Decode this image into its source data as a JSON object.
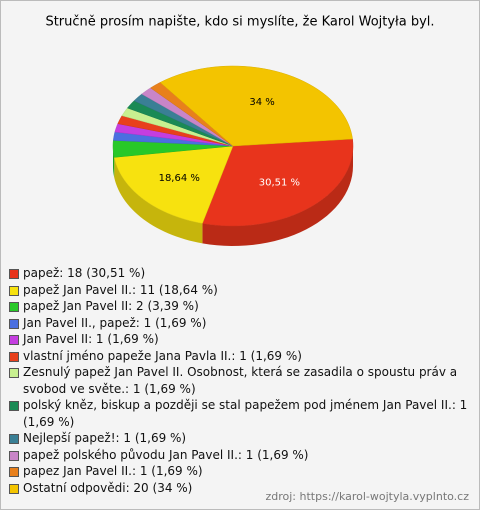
{
  "chart_data": {
    "type": "pie",
    "title": "Stručně prosím napište, kdo si myslíte, že Karol Wojtyła byl.",
    "categories": [
      "papež: 18 (30,51 %)",
      "papež Jan Pavel II.: 11 (18,64 %)",
      "papež Jan Pavel II: 2 (3,39 %)",
      "Jan Pavel II., papež: 1 (1,69 %)",
      "Jan Pavel II: 1 (1,69 %)",
      "vlastní jméno papeže Jana Pavla II.: 1 (1,69 %)",
      "Zesnulý papež Jan Pavel II. Osobnost, která se zasadila o spoustu práv a svobod ve světe.: 1 (1,69 %)",
      "polský kněz, biskup a později se stal papežem pod jménem Jan Pavel II.: 1 (1,69 %)",
      "Nejlepší papež!: 1 (1,69 %)",
      "papež polského původu Jan Pavel II.: 1 (1,69 %)",
      "papez Jan Pavel II.: 1 (1,69 %)",
      "Ostatní odpovědi: 20 (34 %)"
    ],
    "values": [
      30.51,
      18.64,
      3.39,
      1.69,
      1.69,
      1.69,
      1.69,
      1.69,
      1.69,
      1.69,
      1.69,
      34
    ],
    "value_labels": [
      "30,51 %",
      "18,64 %",
      null,
      null,
      null,
      null,
      null,
      null,
      null,
      null,
      null,
      "34 %"
    ],
    "colors": [
      "#e8341c",
      "#f7e20f",
      "#28c828",
      "#4b6fe0",
      "#c43ee0",
      "#e8401c",
      "#c8f090",
      "#1a8a55",
      "#3a7f95",
      "#c985c8",
      "#e8801c",
      "#f3c400"
    ],
    "source": "zdroj: https://karol-wojtyla.vyplnto.cz"
  }
}
